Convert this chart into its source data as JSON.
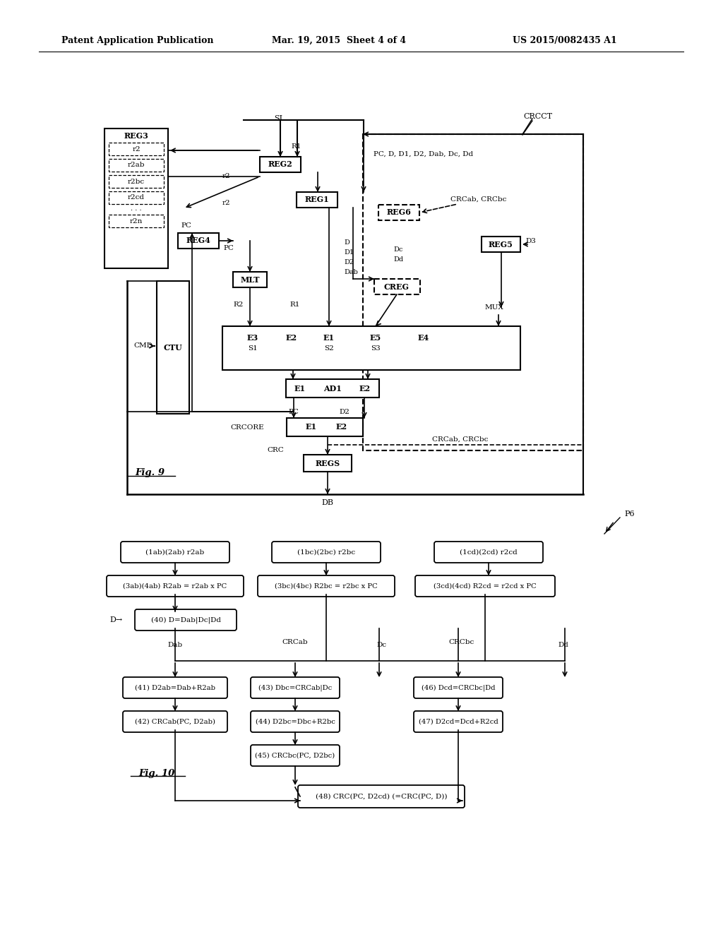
{
  "header_left": "Patent Application Publication",
  "header_mid": "Mar. 19, 2015  Sheet 4 of 4",
  "header_right": "US 2015/0082435 A1",
  "background": "#ffffff"
}
